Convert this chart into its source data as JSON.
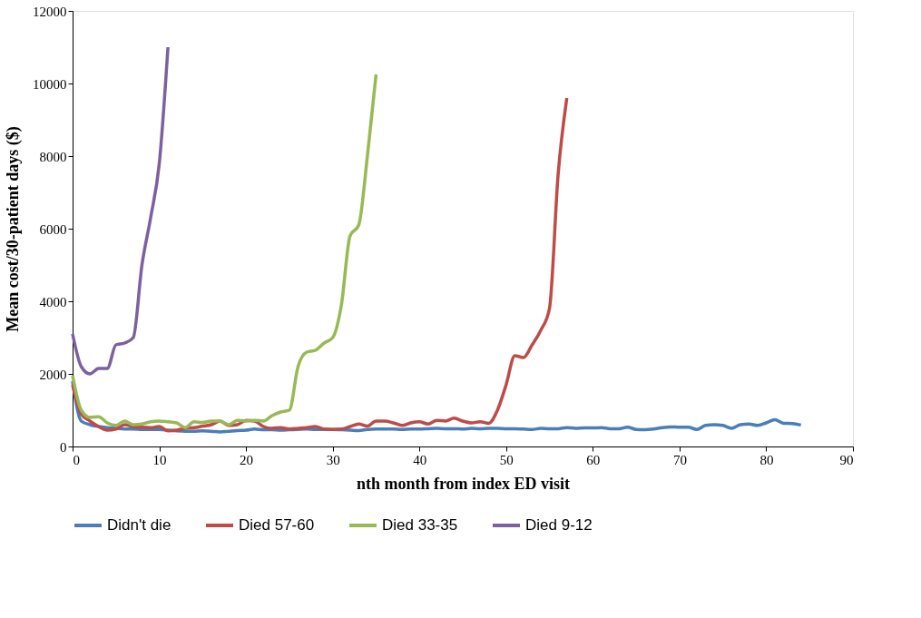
{
  "chart_data": {
    "type": "line",
    "xlabel": "nth month from index ED visit",
    "ylabel": "Mean cost/30-patient days ($)",
    "xlim": [
      0,
      90
    ],
    "xticks": [
      0,
      10,
      20,
      30,
      40,
      50,
      60,
      70,
      80,
      90
    ],
    "ylim": [
      0,
      12000
    ],
    "yticks": [
      0,
      2000,
      4000,
      6000,
      8000,
      10000,
      12000
    ],
    "grid": false,
    "legend": "bottom",
    "marker": "none",
    "line_style": "solid",
    "series": [
      {
        "name": "Didn't die",
        "color": "#4a7ebb",
        "x": [
          0,
          1,
          2,
          3,
          4,
          5,
          6,
          7,
          8,
          9,
          10,
          11,
          12,
          13,
          14,
          15,
          16,
          17,
          18,
          19,
          20,
          21,
          22,
          23,
          24,
          25,
          26,
          27,
          28,
          29,
          30,
          31,
          32,
          33,
          34,
          35,
          36,
          37,
          38,
          39,
          40,
          41,
          42,
          43,
          44,
          45,
          46,
          47,
          48,
          49,
          50,
          51,
          52,
          53,
          54,
          55,
          56,
          57,
          58,
          59,
          60,
          61,
          62,
          63,
          64,
          65,
          66,
          67,
          68,
          69,
          70,
          71,
          72,
          73,
          74,
          75,
          76,
          77,
          78,
          79,
          80,
          81,
          82,
          83,
          84
        ],
        "values": [
          1800,
          700,
          600,
          550,
          520,
          500,
          480,
          480,
          470,
          470,
          470,
          450,
          430,
          420,
          420,
          430,
          420,
          400,
          420,
          440,
          450,
          480,
          460,
          460,
          450,
          460,
          470,
          480,
          470,
          470,
          470,
          460,
          450,
          440,
          470,
          480,
          480,
          480,
          470,
          480,
          480,
          490,
          500,
          490,
          490,
          480,
          500,
          490,
          500,
          500,
          490,
          490,
          480,
          470,
          500,
          490,
          490,
          520,
          500,
          510,
          510,
          520,
          490,
          490,
          530,
          470,
          460,
          480,
          520,
          540,
          530,
          530,
          470,
          580,
          600,
          580,
          500,
          600,
          620,
          580,
          650,
          740,
          640,
          630,
          590
        ]
      },
      {
        "name": "Died 57-60",
        "color": "#be4b48",
        "x": [
          0,
          1,
          2,
          3,
          4,
          5,
          6,
          7,
          8,
          9,
          10,
          11,
          12,
          13,
          14,
          15,
          16,
          17,
          18,
          19,
          20,
          21,
          22,
          23,
          24,
          25,
          26,
          27,
          28,
          29,
          30,
          31,
          32,
          33,
          34,
          35,
          36,
          37,
          38,
          39,
          40,
          41,
          42,
          43,
          44,
          45,
          46,
          47,
          48,
          49,
          50,
          51,
          52,
          53,
          54,
          55,
          56,
          57
        ],
        "values": [
          1700,
          900,
          700,
          550,
          450,
          480,
          600,
          550,
          530,
          520,
          550,
          430,
          450,
          500,
          520,
          560,
          600,
          700,
          580,
          600,
          720,
          700,
          550,
          500,
          520,
          480,
          500,
          520,
          550,
          480,
          470,
          480,
          550,
          620,
          560,
          700,
          700,
          650,
          580,
          650,
          680,
          620,
          720,
          700,
          780,
          700,
          650,
          680,
          640,
          1000,
          1700,
          2500,
          2450,
          2800,
          3200,
          3800,
          7500,
          9600
        ]
      },
      {
        "name": "Died 33-35",
        "color": "#98b954",
        "x": [
          0,
          1,
          2,
          3,
          4,
          5,
          6,
          7,
          8,
          9,
          10,
          11,
          12,
          13,
          14,
          15,
          16,
          17,
          18,
          19,
          20,
          21,
          22,
          23,
          24,
          25,
          26,
          27,
          28,
          29,
          30,
          31,
          32,
          33,
          34,
          35
        ],
        "values": [
          1950,
          1000,
          800,
          820,
          650,
          580,
          700,
          600,
          620,
          680,
          700,
          680,
          650,
          520,
          680,
          660,
          700,
          700,
          600,
          720,
          700,
          720,
          700,
          850,
          950,
          1000,
          2200,
          2600,
          2650,
          2850,
          3000,
          3900,
          5800,
          6100,
          8000,
          10250
        ]
      },
      {
        "name": "Died 9-12",
        "color": "#7d60a0",
        "x": [
          0,
          1,
          2,
          3,
          4,
          5,
          6,
          7,
          8,
          9,
          10,
          11
        ],
        "values": [
          3100,
          2200,
          2000,
          2150,
          2150,
          2800,
          2850,
          3000,
          5000,
          6300,
          7800,
          11000
        ]
      }
    ]
  }
}
